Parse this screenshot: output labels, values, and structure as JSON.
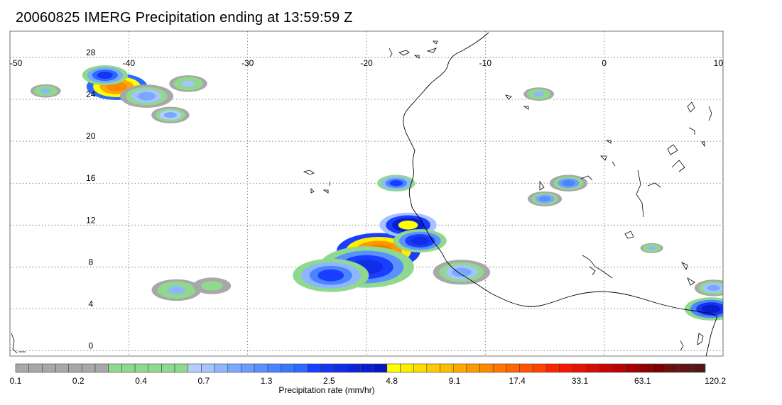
{
  "title": "20060825 IMERG Precipitation ending at 13:59:59 Z",
  "map": {
    "lon_ticks": [
      "-50",
      "-40",
      "-30",
      "-20",
      "-10",
      "0",
      "10"
    ],
    "lat_ticks": [
      "28",
      "24",
      "20",
      "16",
      "12",
      "8",
      "4",
      "0"
    ],
    "lon_range": [
      -50,
      10
    ],
    "lat_range": [
      -0.5,
      30.5
    ],
    "grid": "dotted",
    "coastline_color": "#000000"
  },
  "colorbar": {
    "label": "Precipitation rate (mm/hr)",
    "tick_labels": [
      "0.1",
      "0.2",
      "0.4",
      "0.7",
      "1.3",
      "2.5",
      "4.8",
      "9.1",
      "17.4",
      "33.1",
      "63.1",
      "120.2"
    ],
    "colors": [
      "#a8a8a8",
      "#a8a8a8",
      "#a8a8a8",
      "#a8a8a8",
      "#a8a8a8",
      "#a8a8a8",
      "#a8a8a8",
      "#8fd98f",
      "#8fd98f",
      "#8fd98f",
      "#8fd98f",
      "#8fd98f",
      "#8fd98f",
      "#b8ccff",
      "#a6c3ff",
      "#8fb5ff",
      "#7aa8ff",
      "#6b9cff",
      "#5a90ff",
      "#4a84ff",
      "#3a77ff",
      "#2b6bff",
      "#1a3dff",
      "#1535f5",
      "#102de8",
      "#0c25dc",
      "#081dcf",
      "#0515c2",
      "#ffff00",
      "#ffee00",
      "#ffdd00",
      "#ffcc00",
      "#ffbb00",
      "#ffaa00",
      "#ff9900",
      "#ff8800",
      "#ff7700",
      "#ff6600",
      "#ff5500",
      "#ff4400",
      "#ff2200",
      "#f21a00",
      "#e51300",
      "#d60c00",
      "#c80600",
      "#ba0000",
      "#a50000",
      "#8f0000",
      "#7a0000",
      "#6b1010",
      "#5e1414",
      "#521818"
    ]
  },
  "precip_features": [
    {
      "lon": -41.0,
      "lat": 25.2,
      "rate": 12.0,
      "size": 1.6
    },
    {
      "lon": -42.0,
      "lat": 26.3,
      "rate": 2.5,
      "size": 1.2
    },
    {
      "lon": -38.5,
      "lat": 24.3,
      "rate": 1.0,
      "size": 1.4
    },
    {
      "lon": -36.5,
      "lat": 22.5,
      "rate": 0.9,
      "size": 1.0
    },
    {
      "lon": -35.0,
      "lat": 25.5,
      "rate": 0.7,
      "size": 1.0
    },
    {
      "lon": -47.0,
      "lat": 24.8,
      "rate": 0.8,
      "size": 0.8
    },
    {
      "lon": -19.0,
      "lat": 9.5,
      "rate": 14.0,
      "size": 2.2
    },
    {
      "lon": -20.0,
      "lat": 8.0,
      "rate": 3.0,
      "size": 2.5
    },
    {
      "lon": -23.0,
      "lat": 7.2,
      "rate": 2.0,
      "size": 2.0
    },
    {
      "lon": -16.5,
      "lat": 12.0,
      "rate": 5.0,
      "size": 1.5
    },
    {
      "lon": -15.5,
      "lat": 10.5,
      "rate": 3.0,
      "size": 1.4
    },
    {
      "lon": -17.5,
      "lat": 16.0,
      "rate": 2.0,
      "size": 1.0
    },
    {
      "lon": -12.0,
      "lat": 7.5,
      "rate": 1.0,
      "size": 1.5
    },
    {
      "lon": -36.0,
      "lat": 5.8,
      "rate": 0.8,
      "size": 1.3
    },
    {
      "lon": -33.0,
      "lat": 6.2,
      "rate": 0.6,
      "size": 1.0
    },
    {
      "lon": -5.5,
      "lat": 24.5,
      "rate": 0.8,
      "size": 0.8
    },
    {
      "lon": -3.0,
      "lat": 16.0,
      "rate": 1.5,
      "size": 1.0
    },
    {
      "lon": -5.0,
      "lat": 14.5,
      "rate": 1.2,
      "size": 0.9
    },
    {
      "lon": 9.0,
      "lat": 4.0,
      "rate": 3.5,
      "size": 1.4
    },
    {
      "lon": 9.2,
      "lat": 6.0,
      "rate": 1.0,
      "size": 1.0
    },
    {
      "lon": 4.0,
      "lat": 9.8,
      "rate": 0.8,
      "size": 0.6
    }
  ]
}
